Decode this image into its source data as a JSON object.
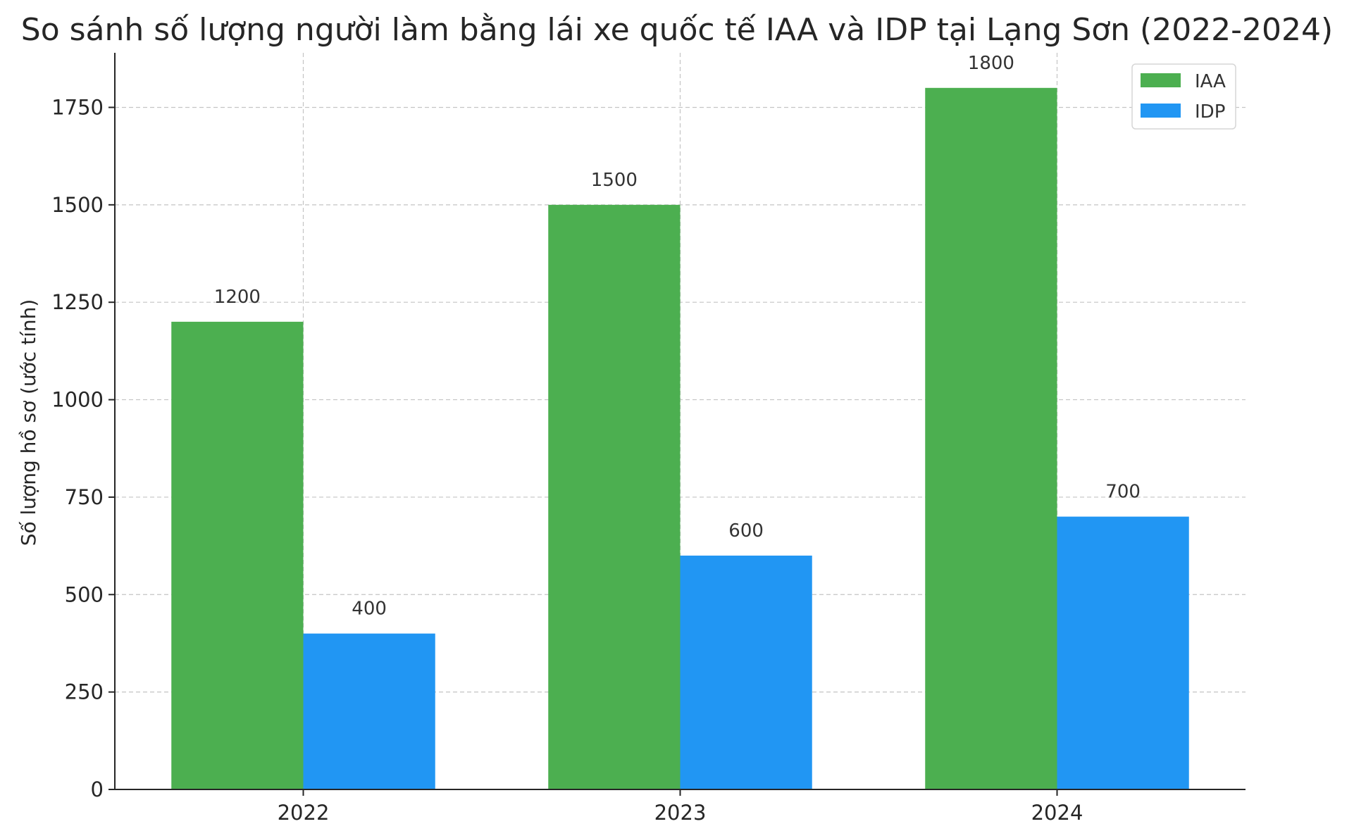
{
  "chart_data": {
    "type": "bar",
    "title": "So sánh số lượng người làm bằng lái xe quốc tế IAA và IDP tại Lạng Sơn (2022-2024)",
    "xlabel": "",
    "ylabel": "Số lượng hồ sơ (ước tính)",
    "categories": [
      "2022",
      "2023",
      "2024"
    ],
    "series": [
      {
        "name": "IAA",
        "values": [
          1200,
          1500,
          1800
        ],
        "color": "#4caf50"
      },
      {
        "name": "IDP",
        "values": [
          400,
          600,
          700
        ],
        "color": "#2196f3"
      }
    ],
    "ylim": [
      0,
      1890
    ],
    "yticks": [
      0,
      250,
      500,
      750,
      1000,
      1250,
      1500,
      1750
    ],
    "grid": true,
    "legend_position": "top-right",
    "data_labels": true
  }
}
